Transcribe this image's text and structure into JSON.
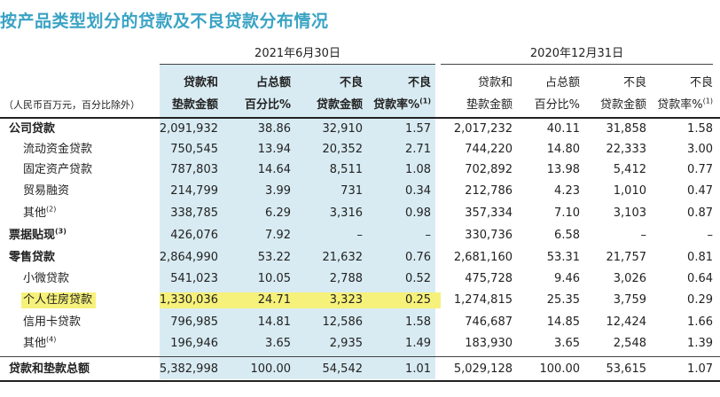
{
  "title": "按产品类型划分的贷款及不良贷款分布情况",
  "period_a": "2021年6月30日",
  "period_b": "2020年12月31日",
  "unit_note": "（人民币百万元，百分比除外）",
  "headers": [
    [
      "贷款和",
      "垫款金额"
    ],
    [
      "占总额",
      "百分比%"
    ],
    [
      "不良",
      "贷款金额"
    ],
    [
      "不良",
      "贷款率%"
    ],
    [
      "贷款和",
      "垫款金额"
    ],
    [
      "占总额",
      "百分比%"
    ],
    [
      "不良",
      "贷款金额"
    ],
    [
      "不良",
      "贷款率%"
    ]
  ],
  "footnote_mark": "(1)",
  "rows": [
    {
      "label": "公司贷款",
      "note": "",
      "bold": true,
      "vals": [
        "2,091,932",
        "38.86",
        "32,910",
        "1.57",
        "2,017,232",
        "40.11",
        "31,858",
        "1.58"
      ]
    },
    {
      "label": "流动资金贷款",
      "note": "",
      "bold": false,
      "vals": [
        "750,545",
        "13.94",
        "20,352",
        "2.71",
        "744,220",
        "14.80",
        "22,333",
        "3.00"
      ]
    },
    {
      "label": "固定资产贷款",
      "note": "",
      "bold": false,
      "vals": [
        "787,803",
        "14.64",
        "8,511",
        "1.08",
        "702,892",
        "13.98",
        "5,412",
        "0.77"
      ]
    },
    {
      "label": "贸易融资",
      "note": "",
      "bold": false,
      "vals": [
        "214,799",
        "3.99",
        "731",
        "0.34",
        "212,786",
        "4.23",
        "1,010",
        "0.47"
      ]
    },
    {
      "label": "其他",
      "note": "(2)",
      "bold": false,
      "vals": [
        "338,785",
        "6.29",
        "3,316",
        "0.98",
        "357,334",
        "7.10",
        "3,103",
        "0.87"
      ]
    },
    {
      "label": "票据贴现",
      "note": "(3)",
      "bold": true,
      "vals": [
        "426,076",
        "7.92",
        "–",
        "–",
        "330,736",
        "6.58",
        "–",
        "–"
      ]
    },
    {
      "label": "零售贷款",
      "note": "",
      "bold": true,
      "vals": [
        "2,864,990",
        "53.22",
        "21,632",
        "0.76",
        "2,681,160",
        "53.31",
        "21,757",
        "0.81"
      ]
    },
    {
      "label": "小微贷款",
      "note": "",
      "bold": false,
      "vals": [
        "541,023",
        "10.05",
        "2,788",
        "0.52",
        "475,728",
        "9.46",
        "3,026",
        "0.64"
      ]
    },
    {
      "label": "个人住房贷款",
      "note": "",
      "bold": false,
      "vals": [
        "1,330,036",
        "24.71",
        "3,323",
        "0.25",
        "1,274,815",
        "25.35",
        "3,759",
        "0.29"
      ]
    },
    {
      "label": "信用卡贷款",
      "note": "",
      "bold": false,
      "vals": [
        "796,985",
        "14.81",
        "12,586",
        "1.58",
        "746,687",
        "14.85",
        "12,424",
        "1.66"
      ]
    },
    {
      "label": "其他",
      "note": "(4)",
      "bold": false,
      "vals": [
        "196,946",
        "3.65",
        "2,935",
        "1.49",
        "183,930",
        "3.65",
        "2,548",
        "1.39"
      ]
    }
  ],
  "total": {
    "label": "贷款和垫款总额",
    "vals": [
      "5,382,998",
      "100.00",
      "54,542",
      "1.01",
      "5,029,128",
      "100.00",
      "53,615",
      "1.07"
    ]
  }
}
